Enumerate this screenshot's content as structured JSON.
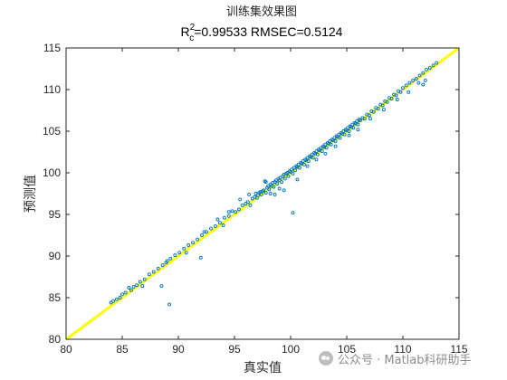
{
  "chart_data": {
    "type": "scatter",
    "title": "训练集效果图",
    "subtitle": {
      "prefix": "R",
      "superscript": "2",
      "subscript": "c",
      "rest": "=0.99533  RMSEC=0.5124"
    },
    "xlabel": "真实值",
    "ylabel": "预测值",
    "xlim": [
      80,
      115
    ],
    "ylim": [
      80,
      115
    ],
    "xticks": [
      "80",
      "85",
      "90",
      "95",
      "100",
      "105",
      "110",
      "115"
    ],
    "yticks": [
      "80",
      "85",
      "90",
      "95",
      "100",
      "105",
      "110",
      "115"
    ],
    "grid": false,
    "legend": "none",
    "reference_line": {
      "from": [
        80,
        80
      ],
      "to": [
        115,
        115
      ],
      "color": "#ffff00"
    },
    "marker_color": "#0072bd",
    "outliers": [
      [
        89.2,
        84.2
      ],
      [
        100.2,
        95.2
      ],
      [
        92.0,
        89.8
      ],
      [
        88.5,
        86.4
      ],
      [
        97.3,
        97.7
      ]
    ],
    "points": [
      [
        84.0,
        84.4
      ],
      [
        84.2,
        84.6
      ],
      [
        84.5,
        84.8
      ],
      [
        84.8,
        85.0
      ],
      [
        85.0,
        85.4
      ],
      [
        85.3,
        85.6
      ],
      [
        85.6,
        86.2
      ],
      [
        85.8,
        85.9
      ],
      [
        86.0,
        86.3
      ],
      [
        86.3,
        86.5
      ],
      [
        86.6,
        86.9
      ],
      [
        87.0,
        87.2
      ],
      [
        87.4,
        87.8
      ],
      [
        87.8,
        88.1
      ],
      [
        88.2,
        88.5
      ],
      [
        88.6,
        88.9
      ],
      [
        89.0,
        89.4
      ],
      [
        89.3,
        89.7
      ],
      [
        89.7,
        90.1
      ],
      [
        90.1,
        90.4
      ],
      [
        90.5,
        90.9
      ],
      [
        90.9,
        91.3
      ],
      [
        91.3,
        91.6
      ],
      [
        91.7,
        92.0
      ],
      [
        92.1,
        92.5
      ],
      [
        92.5,
        92.9
      ],
      [
        92.9,
        93.3
      ],
      [
        93.3,
        93.6
      ],
      [
        93.7,
        94.0
      ],
      [
        94.1,
        94.6
      ],
      [
        94.5,
        94.8
      ],
      [
        94.8,
        95.4
      ],
      [
        95.1,
        95.3
      ],
      [
        95.4,
        95.6
      ],
      [
        95.7,
        96.1
      ],
      [
        96.0,
        96.3
      ],
      [
        96.2,
        96.5
      ],
      [
        96.4,
        96.1
      ],
      [
        96.6,
        96.9
      ],
      [
        96.8,
        97.1
      ],
      [
        97.0,
        97.0
      ],
      [
        97.1,
        97.3
      ],
      [
        97.2,
        97.6
      ],
      [
        97.4,
        97.4
      ],
      [
        97.5,
        97.8
      ],
      [
        97.6,
        97.9
      ],
      [
        97.8,
        97.6
      ],
      [
        97.9,
        98.2
      ],
      [
        98.0,
        98.4
      ],
      [
        98.1,
        98.0
      ],
      [
        98.2,
        98.6
      ],
      [
        98.3,
        98.4
      ],
      [
        98.4,
        98.8
      ],
      [
        98.5,
        98.3
      ],
      [
        98.6,
        98.9
      ],
      [
        98.7,
        99.1
      ],
      [
        98.8,
        98.7
      ],
      [
        98.9,
        99.3
      ],
      [
        99.0,
        99.1
      ],
      [
        99.1,
        99.4
      ],
      [
        99.2,
        98.9
      ],
      [
        99.3,
        99.6
      ],
      [
        99.4,
        99.8
      ],
      [
        99.5,
        99.3
      ],
      [
        99.6,
        99.9
      ],
      [
        99.7,
        100.0
      ],
      [
        99.8,
        99.6
      ],
      [
        99.9,
        100.2
      ],
      [
        100.0,
        100.1
      ],
      [
        100.1,
        100.4
      ],
      [
        100.2,
        99.9
      ],
      [
        100.3,
        100.6
      ],
      [
        100.4,
        100.3
      ],
      [
        100.5,
        100.8
      ],
      [
        100.6,
        100.7
      ],
      [
        100.7,
        101.0
      ],
      [
        100.8,
        100.6
      ],
      [
        100.9,
        101.2
      ],
      [
        101.0,
        101.1
      ],
      [
        101.1,
        101.4
      ],
      [
        101.2,
        101.0
      ],
      [
        101.3,
        101.6
      ],
      [
        101.4,
        101.5
      ],
      [
        101.5,
        101.8
      ],
      [
        101.6,
        101.4
      ],
      [
        101.7,
        102.0
      ],
      [
        101.8,
        101.9
      ],
      [
        101.9,
        102.2
      ],
      [
        102.0,
        101.8
      ],
      [
        102.1,
        102.4
      ],
      [
        102.2,
        102.3
      ],
      [
        102.3,
        102.6
      ],
      [
        102.4,
        102.2
      ],
      [
        102.5,
        102.8
      ],
      [
        102.6,
        102.7
      ],
      [
        102.7,
        103.0
      ],
      [
        102.8,
        102.6
      ],
      [
        102.9,
        103.2
      ],
      [
        103.0,
        103.1
      ],
      [
        103.1,
        103.4
      ],
      [
        103.2,
        103.0
      ],
      [
        103.3,
        103.6
      ],
      [
        103.4,
        103.5
      ],
      [
        103.5,
        103.8
      ],
      [
        103.6,
        103.4
      ],
      [
        103.7,
        104.0
      ],
      [
        103.8,
        103.9
      ],
      [
        103.9,
        104.2
      ],
      [
        104.0,
        103.8
      ],
      [
        104.1,
        104.4
      ],
      [
        104.2,
        104.3
      ],
      [
        104.3,
        104.6
      ],
      [
        104.4,
        104.2
      ],
      [
        104.5,
        104.8
      ],
      [
        104.6,
        104.7
      ],
      [
        104.7,
        105.0
      ],
      [
        104.8,
        104.6
      ],
      [
        104.9,
        105.2
      ],
      [
        105.0,
        105.1
      ],
      [
        105.1,
        105.4
      ],
      [
        105.2,
        105.0
      ],
      [
        105.3,
        105.6
      ],
      [
        105.4,
        105.5
      ],
      [
        105.5,
        105.8
      ],
      [
        105.6,
        105.4
      ],
      [
        105.7,
        106.0
      ],
      [
        105.8,
        105.9
      ],
      [
        105.9,
        106.2
      ],
      [
        106.0,
        105.8
      ],
      [
        106.1,
        106.4
      ],
      [
        106.2,
        106.3
      ],
      [
        106.4,
        106.6
      ],
      [
        106.6,
        106.5
      ],
      [
        106.8,
        107.0
      ],
      [
        107.0,
        106.9
      ],
      [
        107.2,
        107.4
      ],
      [
        107.4,
        107.3
      ],
      [
        107.6,
        107.8
      ],
      [
        107.8,
        107.7
      ],
      [
        108.0,
        108.2
      ],
      [
        108.2,
        108.1
      ],
      [
        108.4,
        108.6
      ],
      [
        108.6,
        108.5
      ],
      [
        108.8,
        109.0
      ],
      [
        109.0,
        108.9
      ],
      [
        109.2,
        109.4
      ],
      [
        109.4,
        109.3
      ],
      [
        109.6,
        109.8
      ],
      [
        109.8,
        109.7
      ],
      [
        110.0,
        110.2
      ],
      [
        110.3,
        110.5
      ],
      [
        110.6,
        110.8
      ],
      [
        110.9,
        111.1
      ],
      [
        111.2,
        111.3
      ],
      [
        111.5,
        111.7
      ],
      [
        111.8,
        112.0
      ],
      [
        112.1,
        112.4
      ],
      [
        112.4,
        112.6
      ],
      [
        112.7,
        112.9
      ],
      [
        113.0,
        113.2
      ],
      [
        94.5,
        95.3
      ],
      [
        95.5,
        96.8
      ],
      [
        96.3,
        97.4
      ],
      [
        97.8,
        98.9
      ],
      [
        98.2,
        97.5
      ],
      [
        99.0,
        98.1
      ],
      [
        99.4,
        97.9
      ],
      [
        98.6,
        97.4
      ],
      [
        100.6,
        99.2
      ],
      [
        101.5,
        100.8
      ],
      [
        102.3,
        101.6
      ],
      [
        103.1,
        102.3
      ],
      [
        104.0,
        103.2
      ],
      [
        105.2,
        104.5
      ],
      [
        106.0,
        105.2
      ],
      [
        107.1,
        106.5
      ],
      [
        108.3,
        107.6
      ],
      [
        109.5,
        108.8
      ],
      [
        110.5,
        109.7
      ],
      [
        111.4,
        110.8
      ],
      [
        112.0,
        111.1
      ],
      [
        111.8,
        110.6
      ],
      [
        86.8,
        86.4
      ],
      [
        88.9,
        89.2
      ],
      [
        90.7,
        90.4
      ],
      [
        92.3,
        92.9
      ],
      [
        93.5,
        94.4
      ],
      [
        94.0,
        93.7
      ],
      [
        96.9,
        97.5
      ],
      [
        97.7,
        99.0
      ]
    ]
  },
  "watermark": {
    "text": "公众号 · Matlab科研助手",
    "icon": "wechat-icon"
  }
}
